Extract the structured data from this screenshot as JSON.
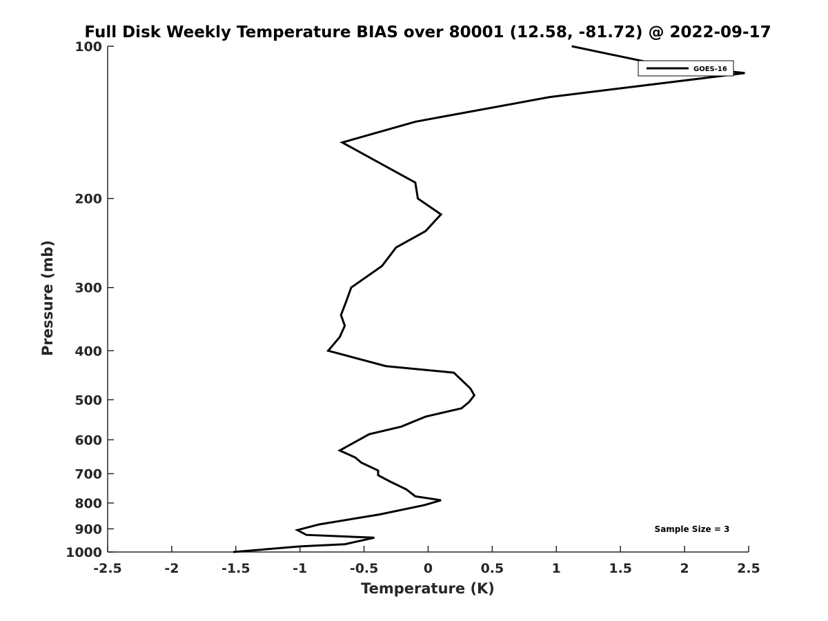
{
  "chart_data": {
    "type": "line",
    "title": "Full Disk Weekly Temperature BIAS over 80001 (12.58, -81.72) @ 2022-09-17",
    "xlabel": "Temperature (K)",
    "ylabel": "Pressure (mb)",
    "xlim": [
      -2.5,
      2.5
    ],
    "ylim": [
      100,
      1000
    ],
    "y_scale": "log",
    "y_reversed": true,
    "grid": false,
    "legend_position": "top-right",
    "x_ticks": [
      -2.5,
      -2,
      -1.5,
      -1,
      -0.5,
      0,
      0.5,
      1,
      1.5,
      2,
      2.5
    ],
    "x_tick_labels": [
      "-2.5",
      "-2",
      "-1.5",
      "-1",
      "-0.5",
      "0",
      "0.5",
      "1",
      "1.5",
      "2",
      "2.5"
    ],
    "y_ticks": [
      100,
      200,
      300,
      400,
      500,
      600,
      700,
      800,
      900,
      1000
    ],
    "y_tick_labels": [
      "100",
      "200",
      "300",
      "400",
      "500",
      "600",
      "700",
      "800",
      "900",
      "1000"
    ],
    "annotation": "Sample Size = 3",
    "series": [
      {
        "name": "GOES-16",
        "color": "#000000",
        "points": [
          [
            1.12,
            100
          ],
          [
            1.75,
            108
          ],
          [
            2.47,
            113
          ],
          [
            0.95,
            126
          ],
          [
            -0.1,
            141
          ],
          [
            -0.67,
            155
          ],
          [
            -0.1,
            186
          ],
          [
            -0.08,
            200
          ],
          [
            0.1,
            215
          ],
          [
            -0.02,
            232
          ],
          [
            -0.25,
            250
          ],
          [
            -0.36,
            272
          ],
          [
            -0.6,
            300
          ],
          [
            -0.64,
            320
          ],
          [
            -0.68,
            340
          ],
          [
            -0.65,
            357
          ],
          [
            -0.69,
            376
          ],
          [
            -0.78,
            400
          ],
          [
            -0.33,
            429
          ],
          [
            0.2,
            442
          ],
          [
            0.33,
            475
          ],
          [
            0.36,
            490
          ],
          [
            0.32,
            505
          ],
          [
            0.26,
            520
          ],
          [
            -0.02,
            540
          ],
          [
            -0.21,
            565
          ],
          [
            -0.46,
            585
          ],
          [
            -0.6,
            612
          ],
          [
            -0.69,
            630
          ],
          [
            -0.57,
            650
          ],
          [
            -0.52,
            666
          ],
          [
            -0.39,
            690
          ],
          [
            -0.39,
            705
          ],
          [
            -0.3,
            725
          ],
          [
            -0.17,
            752
          ],
          [
            -0.1,
            776
          ],
          [
            0.1,
            790
          ],
          [
            -0.03,
            808
          ],
          [
            -0.38,
            843
          ],
          [
            -0.85,
            882
          ],
          [
            -1.02,
            905
          ],
          [
            -0.95,
            925
          ],
          [
            -0.42,
            937
          ],
          [
            -0.65,
            965
          ],
          [
            -1.0,
            975
          ],
          [
            -1.52,
            1000
          ]
        ]
      }
    ]
  }
}
